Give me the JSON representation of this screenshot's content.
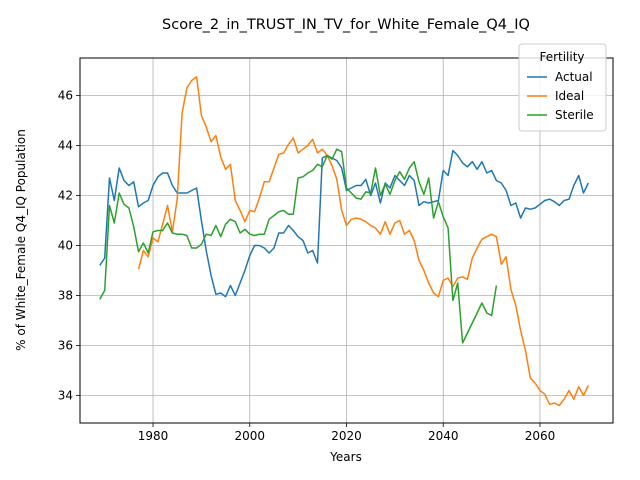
{
  "chart_data": {
    "type": "line",
    "title": "Score_2_in_TRUST_IN_TV_for_White_Female_Q4_IQ",
    "xlabel": "Years",
    "ylabel": "% of White_Female Q4_IQ Population",
    "xlim": [
      1964.9,
      2075.1
    ],
    "ylim": [
      32.9,
      47.5
    ],
    "xticks": [
      1980,
      2000,
      2020,
      2040,
      2060
    ],
    "yticks": [
      34,
      36,
      38,
      40,
      42,
      44,
      46
    ],
    "grid": true,
    "legend": {
      "title": "Fertility",
      "position": "top-right"
    },
    "series": [
      {
        "name": "Actual",
        "color": "#1f77b4",
        "x": [
          1969,
          1970,
          1971,
          1972,
          1973,
          1974,
          1975,
          1976,
          1977,
          1978,
          1979,
          1980,
          1981,
          1982,
          1983,
          1984,
          1985,
          1986,
          1987,
          1988,
          1989,
          1990,
          1991,
          1992,
          1993,
          1994,
          1995,
          1996,
          1997,
          1998,
          1999,
          2000,
          2001,
          2002,
          2003,
          2004,
          2005,
          2006,
          2007,
          2008,
          2009,
          2010,
          2011,
          2012,
          2013,
          2014,
          2015,
          2016,
          2017,
          2018,
          2019,
          2020,
          2021,
          2022,
          2023,
          2024,
          2025,
          2026,
          2027,
          2028,
          2029,
          2030,
          2031,
          2032,
          2033,
          2034,
          2035,
          2036,
          2037,
          2038,
          2039,
          2040,
          2041,
          2042,
          2043,
          2044,
          2045,
          2046,
          2047,
          2048,
          2049,
          2050,
          2051,
          2052,
          2053,
          2054,
          2055,
          2056,
          2057,
          2058,
          2059,
          2060,
          2061,
          2062,
          2063,
          2064,
          2065,
          2066,
          2067,
          2068,
          2069,
          2070
        ],
        "y": [
          39.2,
          39.5,
          42.7,
          41.8,
          43.1,
          42.6,
          42.4,
          42.55,
          41.55,
          41.7,
          41.8,
          42.4,
          42.75,
          42.9,
          42.9,
          42.4,
          42.1,
          42.1,
          42.1,
          42.2,
          42.3,
          41.0,
          39.8,
          38.8,
          38.05,
          38.1,
          37.95,
          38.4,
          38.0,
          38.5,
          39.0,
          39.6,
          40.0,
          40.0,
          39.9,
          39.7,
          39.9,
          40.5,
          40.5,
          40.8,
          40.6,
          40.35,
          40.2,
          39.7,
          39.8,
          39.3,
          43.5,
          43.6,
          43.5,
          43.4,
          43.1,
          42.2,
          42.3,
          42.4,
          42.4,
          42.65,
          42.0,
          42.5,
          41.7,
          42.5,
          42.3,
          42.8,
          42.6,
          42.4,
          42.8,
          42.6,
          41.6,
          41.75,
          41.7,
          41.75,
          41.8,
          43.0,
          42.8,
          43.8,
          43.6,
          43.3,
          43.15,
          43.35,
          43.05,
          43.35,
          42.9,
          43.0,
          42.6,
          42.5,
          42.2,
          41.6,
          41.7,
          41.1,
          41.5,
          41.45,
          41.5,
          41.65,
          41.8,
          41.85,
          41.75,
          41.6,
          41.8,
          41.85,
          42.4,
          42.8,
          42.1,
          42.5
        ]
      },
      {
        "name": "Ideal",
        "color": "#ff7f0e",
        "x": [
          1977,
          1978,
          1979,
          1980,
          1981,
          1982,
          1983,
          1984,
          1985,
          1986,
          1987,
          1988,
          1989,
          1990,
          1991,
          1992,
          1993,
          1994,
          1995,
          1996,
          1997,
          1998,
          1999,
          2000,
          2001,
          2002,
          2003,
          2004,
          2005,
          2006,
          2007,
          2008,
          2009,
          2010,
          2011,
          2012,
          2013,
          2014,
          2015,
          2016,
          2017,
          2018,
          2019,
          2020,
          2021,
          2022,
          2023,
          2024,
          2025,
          2026,
          2027,
          2028,
          2029,
          2030,
          2031,
          2032,
          2033,
          2034,
          2035,
          2036,
          2037,
          2038,
          2039,
          2040,
          2041,
          2042,
          2043,
          2044,
          2045,
          2046,
          2047,
          2048,
          2049,
          2050,
          2051,
          2052,
          2053,
          2054,
          2055,
          2056,
          2057,
          2058,
          2059,
          2060,
          2061,
          2062,
          2063,
          2064,
          2065,
          2066,
          2067,
          2068,
          2069,
          2070
        ],
        "y": [
          39.05,
          39.8,
          39.55,
          40.3,
          40.15,
          40.85,
          41.6,
          40.55,
          41.85,
          45.3,
          46.3,
          46.6,
          46.75,
          45.2,
          44.75,
          44.15,
          44.4,
          43.55,
          43.05,
          43.25,
          41.8,
          41.4,
          40.95,
          41.4,
          41.35,
          41.9,
          42.55,
          42.55,
          43.1,
          43.65,
          43.7,
          44.05,
          44.3,
          43.7,
          43.85,
          44.0,
          44.25,
          43.7,
          43.85,
          43.6,
          43.2,
          42.65,
          41.4,
          40.8,
          41.05,
          41.1,
          41.05,
          40.95,
          40.8,
          40.7,
          40.45,
          40.95,
          40.45,
          40.9,
          41.0,
          40.45,
          40.6,
          40.2,
          39.4,
          39.0,
          38.5,
          38.1,
          37.95,
          38.6,
          38.7,
          38.35,
          38.7,
          38.75,
          38.65,
          39.5,
          39.9,
          40.25,
          40.35,
          40.45,
          40.35,
          39.25,
          39.55,
          38.25,
          37.6,
          36.6,
          35.8,
          34.7,
          34.5,
          34.2,
          34.05,
          33.65,
          33.7,
          33.6,
          33.85,
          34.2,
          33.85,
          34.35,
          34.0,
          34.4
        ]
      },
      {
        "name": "Sterile",
        "color": "#2ca02c",
        "x": [
          1969,
          1970,
          1971,
          1972,
          1973,
          1974,
          1975,
          1976,
          1977,
          1978,
          1979,
          1980,
          1981,
          1982,
          1983,
          1984,
          1985,
          1986,
          1987,
          1988,
          1989,
          1990,
          1991,
          1992,
          1993,
          1994,
          1995,
          1996,
          1997,
          1998,
          1999,
          2000,
          2001,
          2002,
          2003,
          2004,
          2005,
          2006,
          2007,
          2008,
          2009,
          2010,
          2011,
          2012,
          2013,
          2014,
          2015,
          2016,
          2017,
          2018,
          2019,
          2020,
          2021,
          2022,
          2023,
          2024,
          2025,
          2026,
          2027,
          2028,
          2029,
          2030,
          2031,
          2032,
          2033,
          2034,
          2035,
          2036,
          2037,
          2038,
          2039,
          2040,
          2041,
          2042,
          2043,
          2044,
          2045,
          2046,
          2047,
          2048,
          2049,
          2050,
          2051
        ],
        "y": [
          37.85,
          38.2,
          41.6,
          40.9,
          42.1,
          41.65,
          41.5,
          40.75,
          39.75,
          40.1,
          39.7,
          40.55,
          40.6,
          40.6,
          40.9,
          40.5,
          40.45,
          40.45,
          40.4,
          39.9,
          39.9,
          40.05,
          40.45,
          40.4,
          40.8,
          40.35,
          40.85,
          41.05,
          40.95,
          40.5,
          40.65,
          40.45,
          40.4,
          40.45,
          40.45,
          41.05,
          41.2,
          41.35,
          41.4,
          41.25,
          41.25,
          42.7,
          42.75,
          42.9,
          43.0,
          43.25,
          43.15,
          43.6,
          43.45,
          43.85,
          43.75,
          42.3,
          42.1,
          41.9,
          41.85,
          42.15,
          42.1,
          43.1,
          42.0,
          42.45,
          42.05,
          42.6,
          42.95,
          42.65,
          43.1,
          43.35,
          42.55,
          42.05,
          42.7,
          41.1,
          41.75,
          41.15,
          40.7,
          37.8,
          38.5,
          36.1,
          36.5,
          36.9,
          37.3,
          37.7,
          37.3,
          37.2,
          38.4
        ]
      }
    ]
  }
}
